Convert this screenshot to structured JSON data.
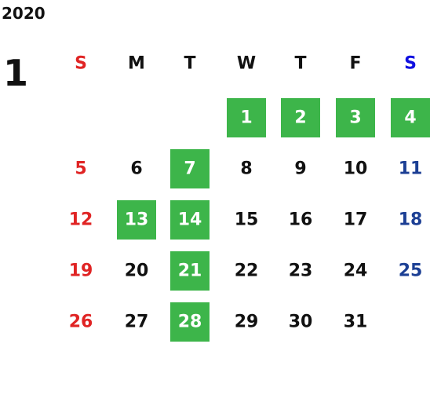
{
  "year": "2020",
  "month": "1",
  "weekdays": [
    "S",
    "M",
    "T",
    "W",
    "T",
    "F",
    "S"
  ],
  "weeks": [
    [
      null,
      null,
      null,
      1,
      2,
      3,
      4
    ],
    [
      5,
      6,
      7,
      8,
      9,
      10,
      11
    ],
    [
      12,
      13,
      14,
      15,
      16,
      17,
      18
    ],
    [
      19,
      20,
      21,
      22,
      23,
      24,
      25
    ],
    [
      26,
      27,
      28,
      29,
      30,
      31,
      null
    ]
  ],
  "highlighted": [
    1,
    2,
    3,
    4,
    7,
    13,
    14,
    21,
    28
  ]
}
